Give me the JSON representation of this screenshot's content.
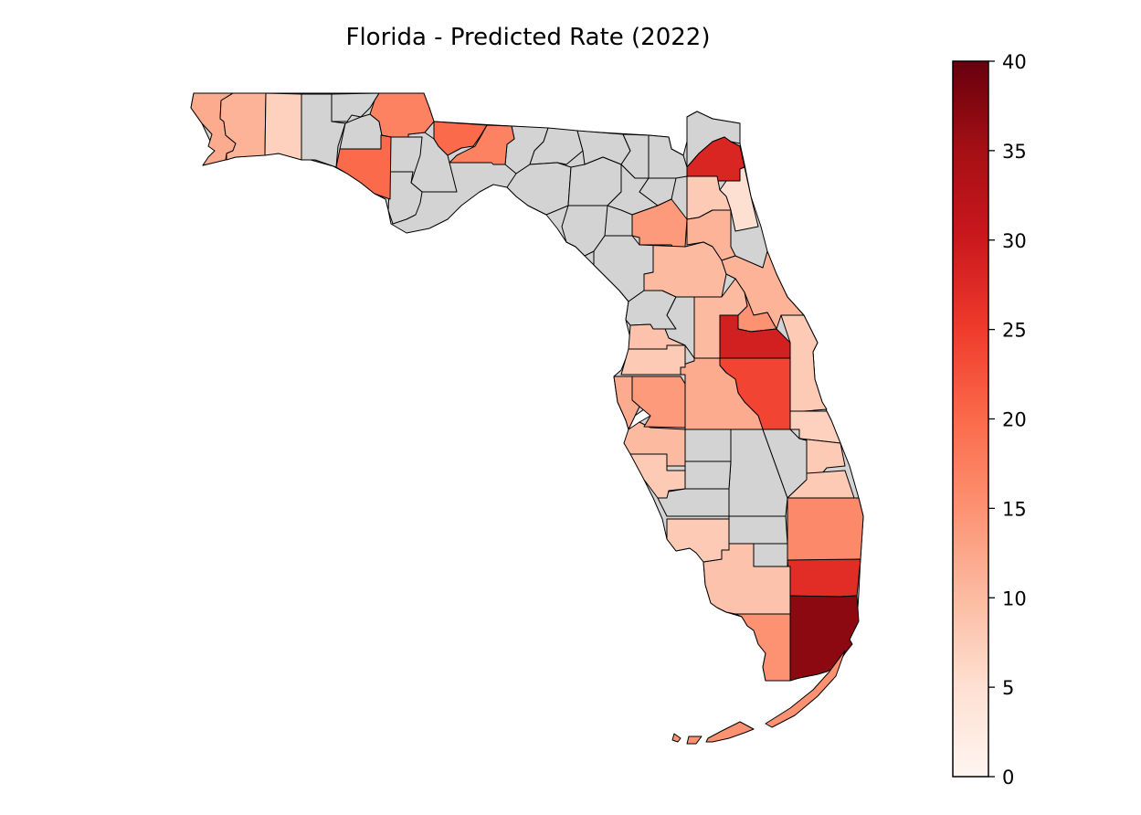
{
  "chart_data": {
    "type": "choropleth",
    "title": "Florida - Predicted Rate (2022)",
    "colormap": "Reds",
    "no_data_color": "#d3d3d3",
    "border_color": "#000000",
    "colorbar": {
      "range": [
        0,
        40
      ],
      "ticks": [
        "0",
        "5",
        "10",
        "15",
        "20",
        "25",
        "30",
        "35",
        "40"
      ],
      "low_color": "#fff5f0",
      "high_color": "#67000d"
    },
    "region_values": [
      12,
      11,
      7,
      17,
      20,
      20,
      17,
      28,
      5,
      8,
      14,
      11,
      10,
      11,
      15,
      10,
      29,
      8,
      24,
      12,
      7,
      8,
      8,
      16,
      27,
      37,
      15,
      9,
      8,
      8,
      10,
      14,
      12,
      8,
      9,
      15,
      15,
      15,
      15
    ]
  }
}
